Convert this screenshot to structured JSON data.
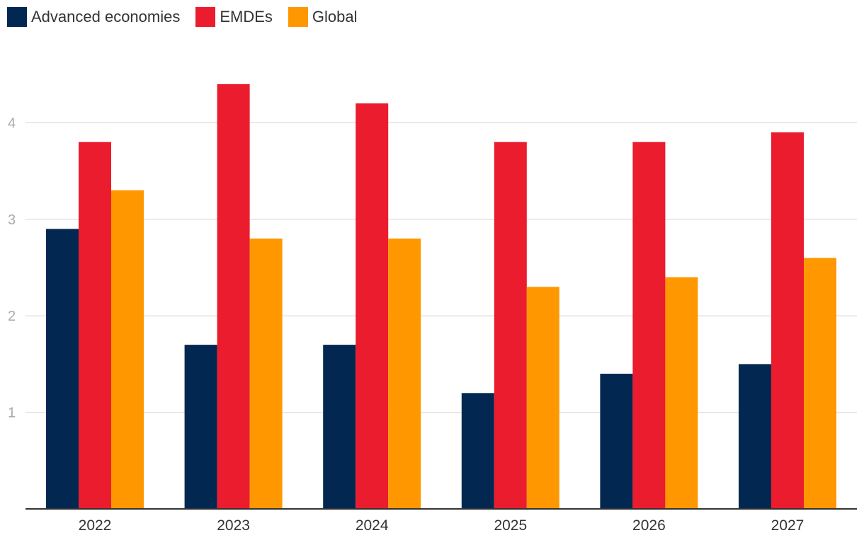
{
  "chart_data": {
    "type": "bar",
    "title": "",
    "xlabel": "",
    "ylabel": "",
    "categories": [
      "2022",
      "2023",
      "2024",
      "2025",
      "2026",
      "2027"
    ],
    "series": [
      {
        "name": "Advanced economies",
        "color": "#022851",
        "values": [
          2.9,
          1.7,
          1.7,
          1.2,
          1.4,
          1.5
        ]
      },
      {
        "name": "EMDEs",
        "color": "#EB1C2D",
        "values": [
          3.8,
          4.4,
          4.2,
          3.8,
          3.8,
          3.9
        ]
      },
      {
        "name": "Global",
        "color": "#FF9800",
        "values": [
          3.3,
          2.8,
          2.8,
          2.3,
          2.4,
          2.6
        ]
      }
    ],
    "ylim": [
      0,
      4.5
    ],
    "yticks": [
      1,
      2,
      3,
      4
    ],
    "grid": true,
    "legend_position": "top-left"
  }
}
